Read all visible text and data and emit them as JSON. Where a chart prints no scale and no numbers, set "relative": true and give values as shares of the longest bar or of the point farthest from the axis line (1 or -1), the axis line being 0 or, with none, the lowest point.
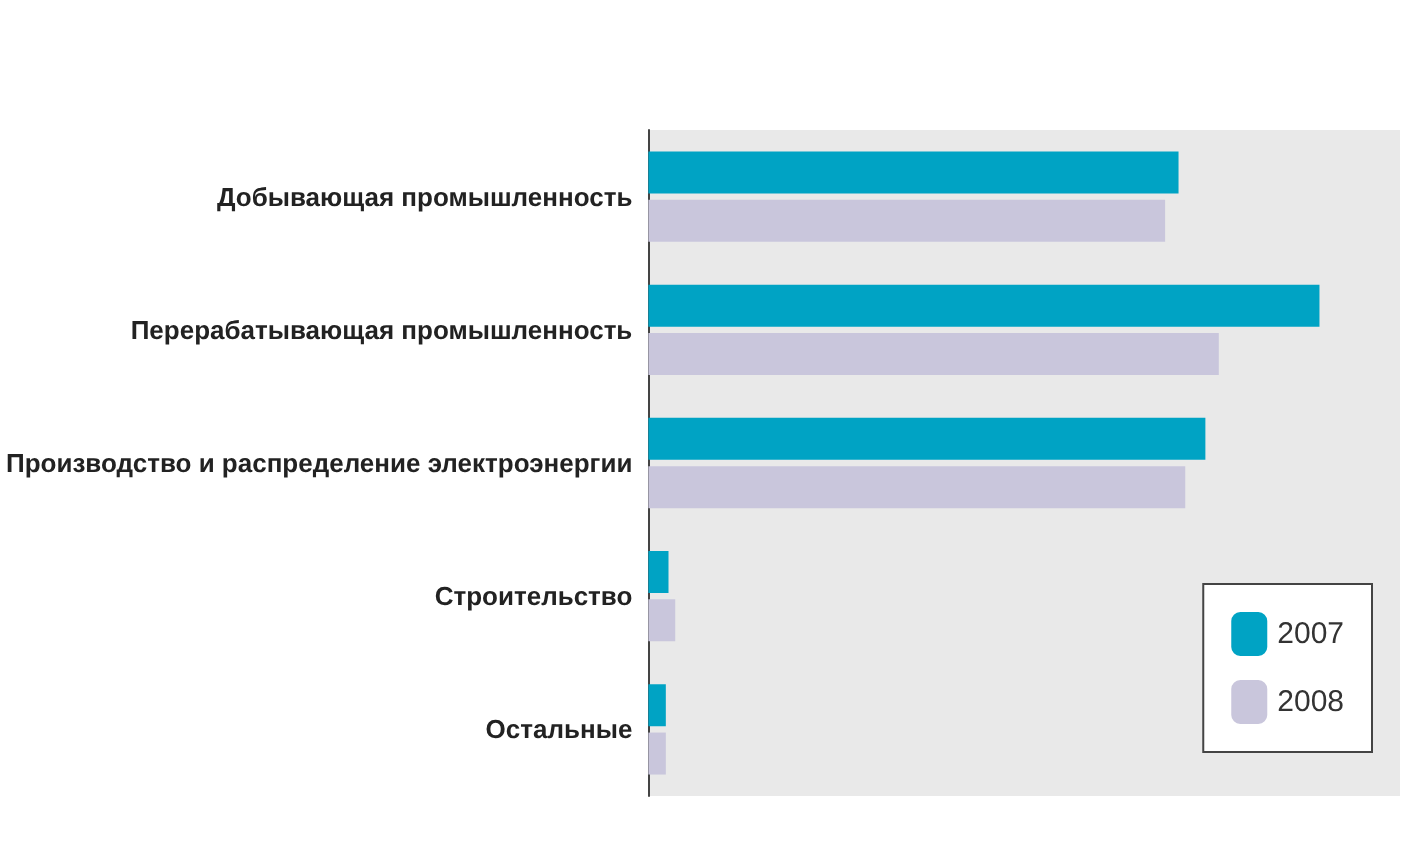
{
  "chart_data": {
    "type": "bar",
    "orientation": "horizontal",
    "relative": true,
    "categories": [
      "Добывающая промышленность",
      "Перерабатывающая промышленность",
      "Производство и распределение электроэнергии",
      "Строительство",
      "Остальные"
    ],
    "series": [
      {
        "name": "2007",
        "color": "#00a3c4",
        "values": [
          0.79,
          1,
          0.83,
          0.03,
          0.026
        ]
      },
      {
        "name": "2008",
        "color": "#c9c6dc",
        "values": [
          0.77,
          0.85,
          0.8,
          0.04,
          0.026
        ]
      }
    ],
    "legend": "bottom right"
  }
}
